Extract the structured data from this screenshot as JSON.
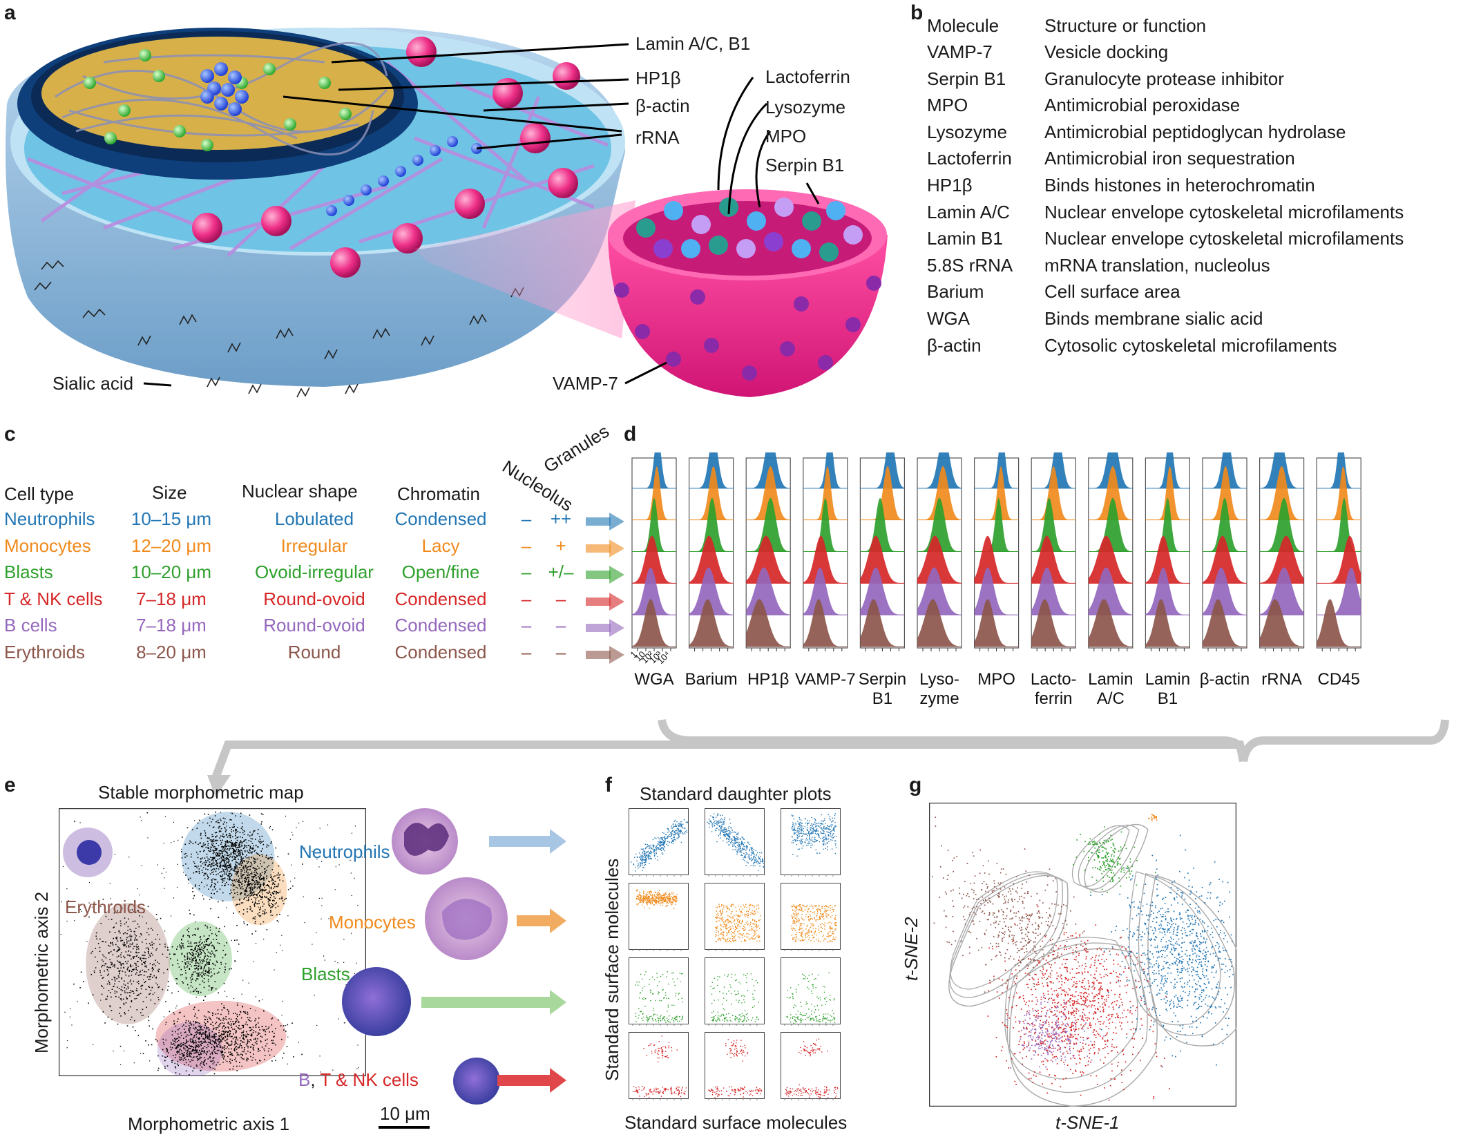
{
  "panels": {
    "a": "a",
    "b": "b",
    "c": "c",
    "d": "d",
    "e": "e",
    "f": "f",
    "g": "g"
  },
  "colors": {
    "neutrophils": "#2276b4",
    "monocytes": "#f08a1c",
    "blasts": "#2ea02c",
    "tnk": "#d62728",
    "bcells": "#9467bd",
    "erythroids": "#8c564b",
    "arrow_gray": "#c6c6c6"
  },
  "panel_a": {
    "labels": [
      "Lamin A/C, B1",
      "HP1β",
      "β-actin",
      "rRNA",
      "Lactoferrin",
      "Lysozyme",
      "MPO",
      "Serpin B1",
      "Sialic acid",
      "VAMP-7"
    ]
  },
  "panel_b": {
    "header": {
      "molecule": "Molecule",
      "function": "Structure or function"
    },
    "rows": [
      {
        "molecule": "VAMP-7",
        "function": "Vesicle docking"
      },
      {
        "molecule": "Serpin B1",
        "function": "Granulocyte protease inhibitor"
      },
      {
        "molecule": "MPO",
        "function": "Antimicrobial peroxidase"
      },
      {
        "molecule": "Lysozyme",
        "function": "Antimicrobial peptidoglycan hydrolase"
      },
      {
        "molecule": "Lactoferrin",
        "function": "Antimicrobial iron sequestration"
      },
      {
        "molecule": "HP1β",
        "function": "Binds histones in heterochromatin"
      },
      {
        "molecule": "Lamin A/C",
        "function": "Nuclear envelope cytoskeletal microfilaments"
      },
      {
        "molecule": "Lamin B1",
        "function": "Nuclear envelope cytoskeletal microfilaments"
      },
      {
        "molecule": "5.8S rRNA",
        "function": "mRNA translation, nucleolus"
      },
      {
        "molecule": "Barium",
        "function": "Cell surface area"
      },
      {
        "molecule": "WGA",
        "function": "Binds membrane sialic acid"
      },
      {
        "molecule": "β-actin",
        "function": "Cytosolic cytoskeletal microfilaments"
      }
    ]
  },
  "panel_c": {
    "headers": {
      "cell_type": "Cell type",
      "size": "Size",
      "nuclear_shape": "Nuclear shape",
      "chromatin": "Chromatin",
      "nucleolus": "Nucleolus",
      "granules": "Granules"
    },
    "rows": [
      {
        "cell": "Neutrophils",
        "size": "10–15 μm",
        "shape": "Lobulated",
        "chromatin": "Condensed",
        "nucleolus": "–",
        "granules": "++",
        "color": "#2276b4"
      },
      {
        "cell": "Monocytes",
        "size": "12–20 μm",
        "shape": "Irregular",
        "chromatin": "Lacy",
        "nucleolus": "–",
        "granules": "+",
        "color": "#f08a1c"
      },
      {
        "cell": "Blasts",
        "size": "10–20 μm",
        "shape": "Ovoid-irregular",
        "chromatin": "Open/fine",
        "nucleolus": "–",
        "granules": "+/–",
        "color": "#2ea02c"
      },
      {
        "cell": "T & NK cells",
        "size": "7–18 μm",
        "shape": "Round-ovoid",
        "chromatin": "Condensed",
        "nucleolus": "–",
        "granules": "–",
        "color": "#d62728"
      },
      {
        "cell": "B cells",
        "size": "7–18 μm",
        "shape": "Round-ovoid",
        "chromatin": "Condensed",
        "nucleolus": "–",
        "granules": "–",
        "color": "#9467bd"
      },
      {
        "cell": "Erythroids",
        "size": "8–20 μm",
        "shape": "Round",
        "chromatin": "Condensed",
        "nucleolus": "–",
        "granules": "–",
        "color": "#8c564b"
      }
    ]
  },
  "chart_data": [
    {
      "type": "area",
      "panel": "d",
      "markers": [
        "WGA",
        "Barium",
        "HP1β",
        "VAMP-7",
        "Serpin B1",
        "Lyso-zyme",
        "MPO",
        "Lacto-ferrin",
        "Lamin A/C",
        "Lamin B1",
        "β-actin",
        "rRNA",
        "CD45"
      ],
      "x_ticks": [
        "1",
        "10",
        "10²",
        "10³",
        "10⁴"
      ],
      "x_scale": "log",
      "series": [
        "Neutrophils",
        "Monocytes",
        "Blasts",
        "T & NK cells",
        "B cells",
        "Erythroids"
      ]
    },
    {
      "type": "scatter",
      "panel": "e",
      "title": "Stable morphometric map",
      "xlabel": "Morphometric axis 1",
      "ylabel": "Morphometric axis 2",
      "clusters": [
        "Neutrophils",
        "Monocytes",
        "Blasts",
        "Erythroids",
        "B",
        "T & NK cells"
      ],
      "scale_bar": "10 μm"
    },
    {
      "type": "scatter",
      "panel": "f",
      "title": "Standard daughter plots",
      "xlabel": "Standard surface molecules",
      "ylabel": "Standard surface molecules",
      "grid": "4x3"
    },
    {
      "type": "scatter",
      "panel": "g",
      "xlabel": "t-SNE-1",
      "ylabel": "t-SNE-2"
    }
  ],
  "panel_e": {
    "b_label": "B",
    "comma": ",",
    "tnk_label": "T & NK cells"
  }
}
